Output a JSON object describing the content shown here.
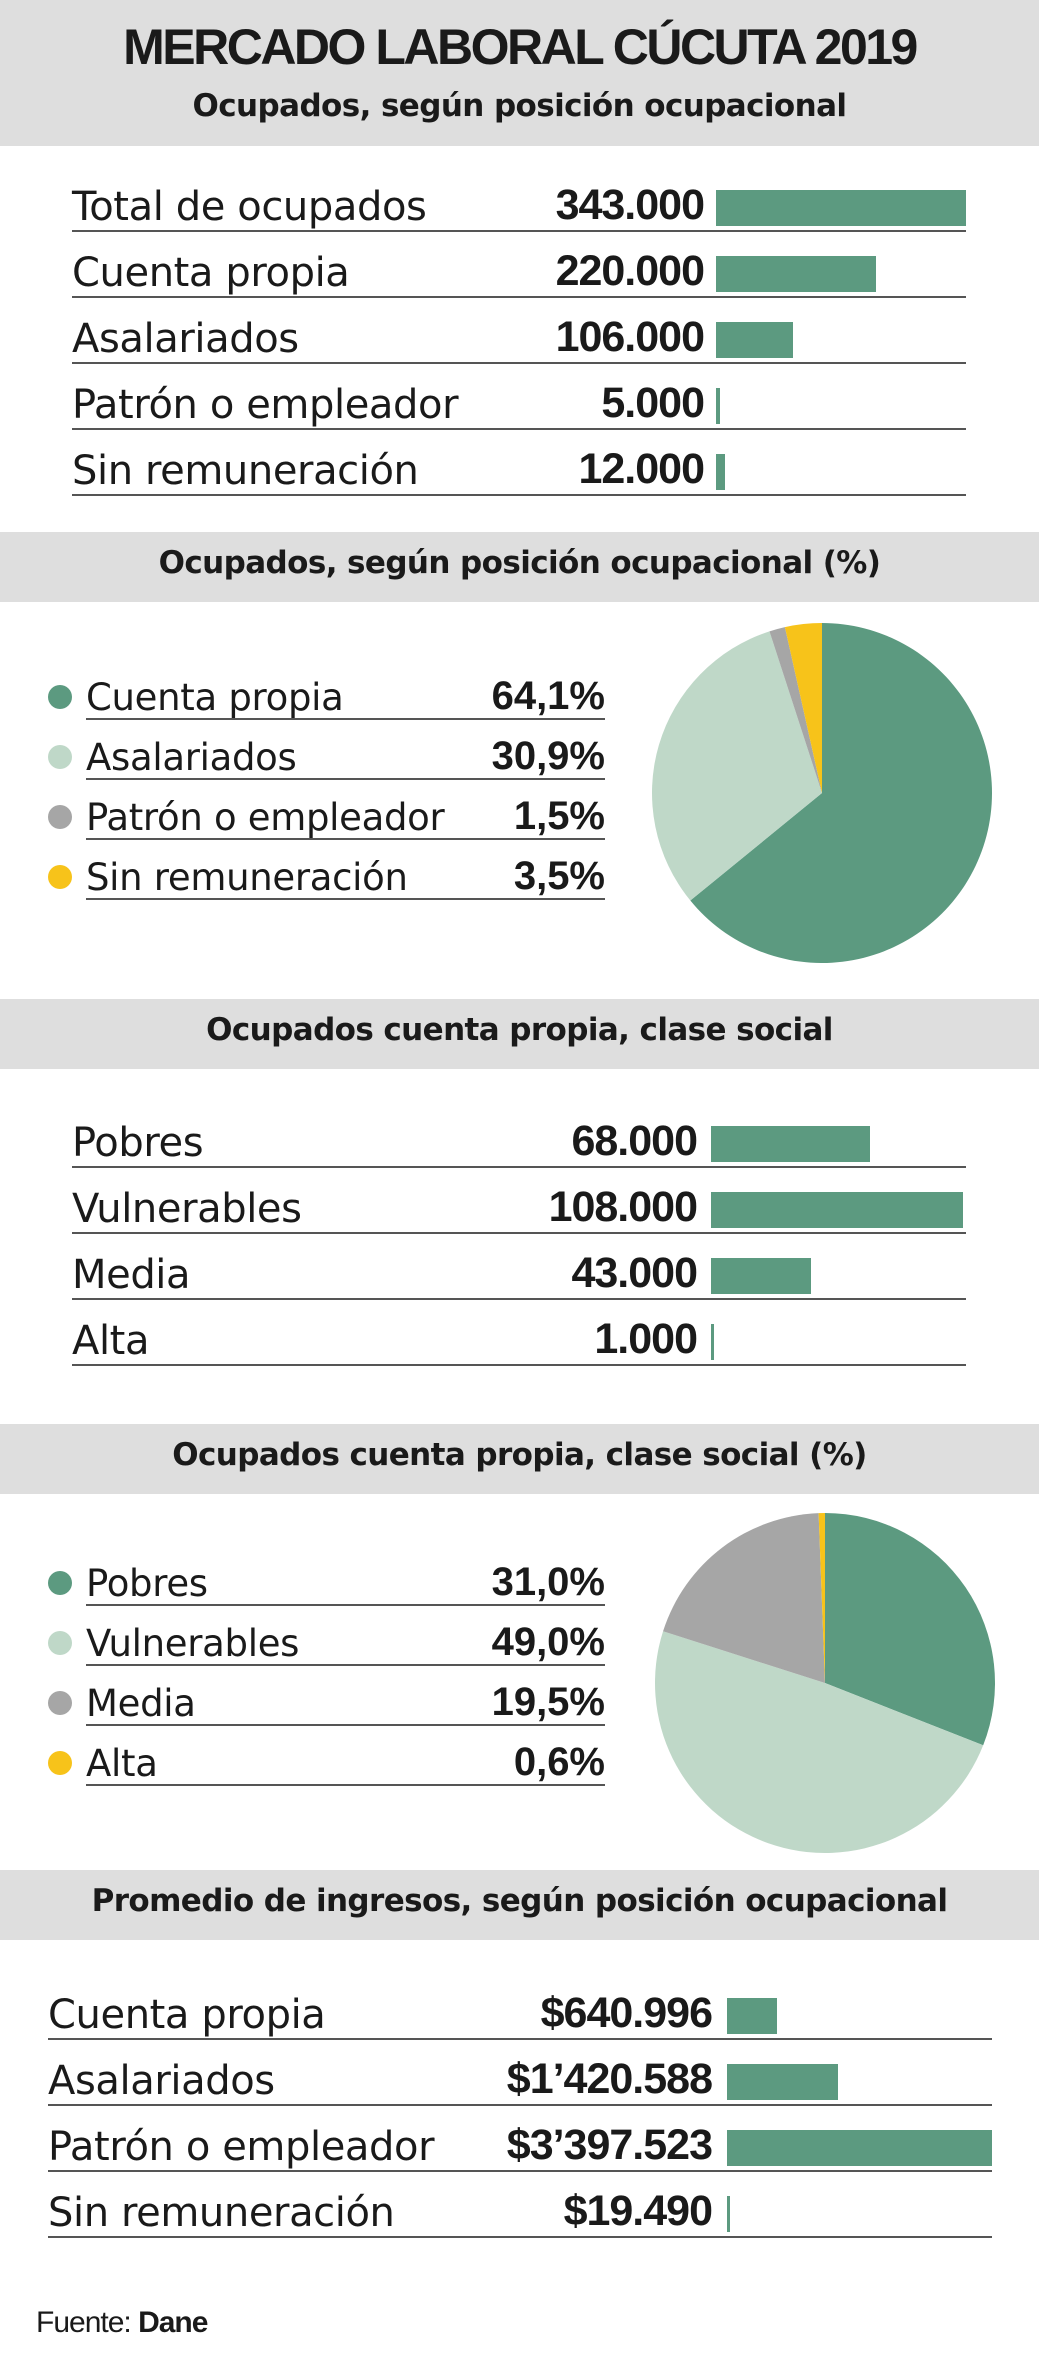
{
  "title": "MERCADO LABORAL CÚCUTA 2019",
  "source_label": "Fuente:",
  "source_name": "Dane",
  "colors": {
    "green": "#5c9a80",
    "light_green": "#bfd8c8",
    "gray": "#a6a6a6",
    "yellow": "#f7c31a",
    "band": "#dedede"
  },
  "chart_data": [
    {
      "type": "bar",
      "title": "Ocupados, según posición ocupacional",
      "categories": [
        "Total de ocupados",
        "Cuenta propia",
        "Asalariados",
        "Patrón o empleador",
        "Sin remuneración"
      ],
      "values": [
        343000,
        220000,
        106000,
        5000,
        12000
      ],
      "value_labels": [
        "343.000",
        "220.000",
        "106.000",
        "5.000",
        "12.000"
      ]
    },
    {
      "type": "pie",
      "title": "Ocupados, según posición ocupacional (%)",
      "categories": [
        "Cuenta propia",
        "Asalariados",
        "Patrón o empleador",
        "Sin remuneración"
      ],
      "values": [
        64.1,
        30.9,
        1.5,
        3.5
      ],
      "value_labels": [
        "64,1%",
        "30,9%",
        "1,5%",
        "3,5%"
      ]
    },
    {
      "type": "bar",
      "title": "Ocupados cuenta propia, clase social",
      "categories": [
        "Pobres",
        "Vulnerables",
        "Media",
        "Alta"
      ],
      "values": [
        68000,
        108000,
        43000,
        1000
      ],
      "value_labels": [
        "68.000",
        "108.000",
        "43.000",
        "1.000"
      ]
    },
    {
      "type": "pie",
      "title": "Ocupados cuenta propia, clase social (%)",
      "categories": [
        "Pobres",
        "Vulnerables",
        "Media",
        "Alta"
      ],
      "values": [
        31.0,
        49.0,
        19.5,
        0.6
      ],
      "value_labels": [
        "31,0%",
        "49,0%",
        "19,5%",
        "0,6%"
      ]
    },
    {
      "type": "bar",
      "title": "Promedio de ingresos, según posición ocupacional",
      "categories": [
        "Cuenta propia",
        "Asalariados",
        "Patrón o empleador",
        "Sin remuneración"
      ],
      "values": [
        640996,
        1420588,
        3397523,
        19490
      ],
      "value_labels": [
        "$640.996",
        "$1’420.588",
        "$3’397.523",
        "$19.490"
      ]
    }
  ]
}
